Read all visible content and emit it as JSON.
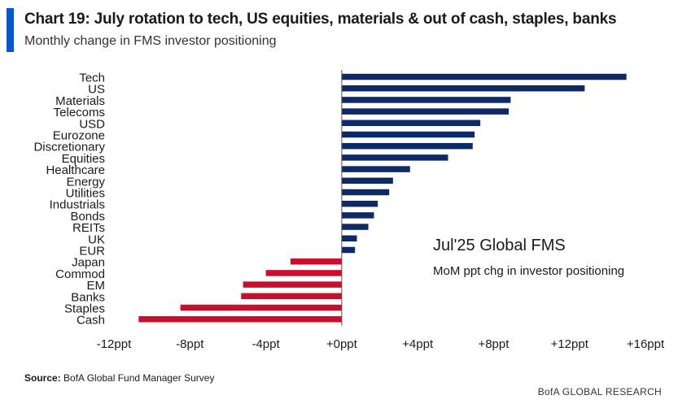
{
  "header": {
    "title": "Chart 19: July rotation to tech, US equities, materials & out of cash, staples, banks",
    "subtitle": "Monthly change in FMS investor positioning"
  },
  "footer": {
    "source_label": "Source:",
    "source_text": " BofA Global Fund Manager Survey",
    "brand": "BofA GLOBAL RESEARCH"
  },
  "colors": {
    "accent": "#0b57c8",
    "positive": "#0e2a66",
    "negative": "#c8102e"
  },
  "chart_data": {
    "type": "bar",
    "orientation": "horizontal",
    "title": "Chart 19: July rotation to tech, US equities, materials & out of cash, staples, banks",
    "subtitle": "Monthly change in FMS investor positioning",
    "annotation": {
      "title": "Jul'25 Global FMS",
      "text": "MoM ppt chg in investor positioning"
    },
    "categories": [
      "Tech",
      "US",
      "Materials",
      "Telecoms",
      "USD",
      "Eurozone",
      "Discretionary",
      "Equities",
      "Healthcare",
      "Energy",
      "Utilities",
      "Industrials",
      "Bonds",
      "REITs",
      "UK",
      "EUR",
      "Japan",
      "Commod",
      "EM",
      "Banks",
      "Staples",
      "Cash"
    ],
    "values": [
      15,
      12.8,
      8.9,
      8.8,
      7.3,
      7.0,
      6.9,
      5.6,
      3.6,
      2.7,
      2.5,
      1.9,
      1.7,
      1.4,
      0.8,
      0.7,
      -2.7,
      -4.0,
      -5.2,
      -5.3,
      -8.5,
      -10.7
    ],
    "xlim": [
      -12,
      16
    ],
    "xticks": [
      "-12ppt",
      "-8ppt",
      "-4ppt",
      "+0ppt",
      "+4ppt",
      "+8ppt",
      "+12ppt",
      "+16ppt"
    ],
    "xtick_values": [
      -12,
      -8,
      -4,
      0,
      4,
      8,
      12,
      16
    ],
    "grid": false,
    "legend": "none"
  }
}
